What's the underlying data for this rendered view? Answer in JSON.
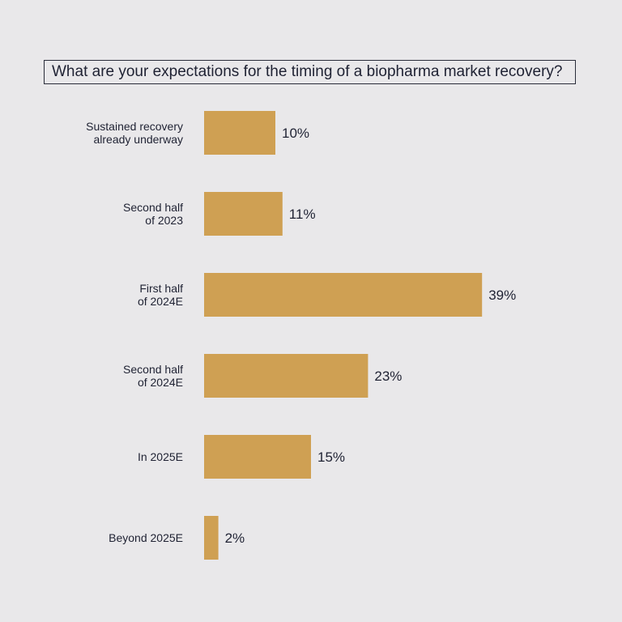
{
  "chart_data": {
    "type": "bar",
    "orientation": "horizontal",
    "title": "What are your expectations for the timing of a biopharma market recovery?",
    "categories": [
      [
        "Sustained recovery",
        "already underway"
      ],
      [
        "Second half",
        "of 2023"
      ],
      [
        "First half",
        "of 2024E"
      ],
      [
        "Second half",
        "of 2024E"
      ],
      [
        "In 2025E"
      ],
      [
        "Beyond 2025E"
      ]
    ],
    "values": [
      10,
      11,
      39,
      23,
      15,
      2
    ],
    "value_labels": [
      "10%",
      "11%",
      "39%",
      "23%",
      "15%",
      "2%"
    ],
    "unit": "%",
    "bar_color": "#cfa053",
    "grid": false,
    "legend": "none"
  }
}
